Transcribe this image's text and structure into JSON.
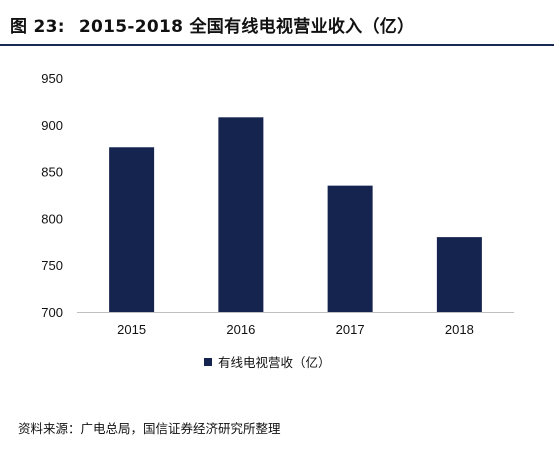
{
  "figure": {
    "label": "图 23:",
    "title": "2015-2018 全国有线电视营业收入（亿）"
  },
  "source": "资料来源：广电总局，国信证券经济研究所整理",
  "chart_data": {
    "type": "bar",
    "categories": [
      "2015",
      "2016",
      "2017",
      "2018"
    ],
    "series": [
      {
        "name": "有线电视营收（亿）",
        "values": [
          876,
          908,
          835,
          780
        ],
        "color": "#14244f"
      }
    ],
    "ylim": [
      700,
      950
    ],
    "yticks": [
      "700",
      "750",
      "800",
      "850",
      "900",
      "950"
    ],
    "grid": false,
    "legend_position": "bottom-center"
  }
}
